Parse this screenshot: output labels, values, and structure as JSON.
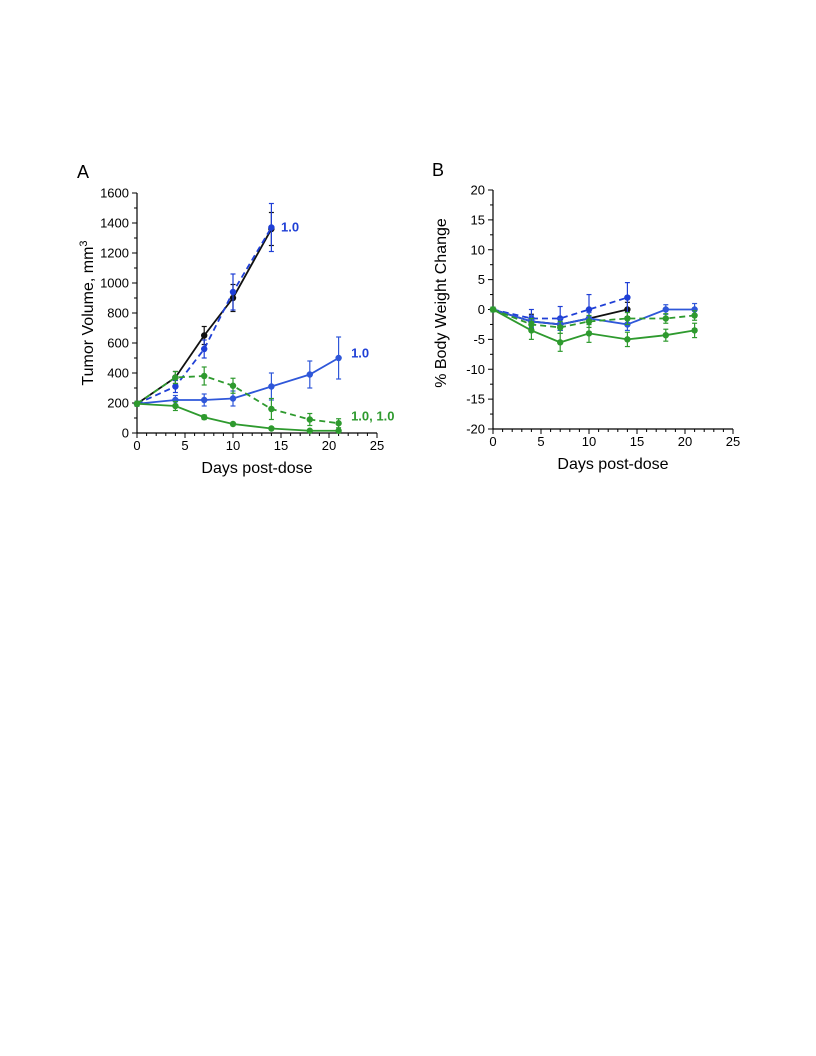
{
  "chart_data": [
    {
      "type": "line",
      "panel_label": "A",
      "xlabel": "Days post-dose",
      "ylabel": "Tumor Volume, mm",
      "ylabel_superscript": "3",
      "xlim": [
        0,
        25
      ],
      "ylim": [
        0,
        1600
      ],
      "xticks": [
        0,
        5,
        10,
        15,
        20,
        25
      ],
      "yticks": [
        0,
        200,
        400,
        600,
        800,
        1000,
        1200,
        1400,
        1600
      ],
      "grid": false,
      "series": [
        {
          "color": "#111111",
          "dash": false,
          "x": [
            0,
            4,
            7,
            10,
            14
          ],
          "y": [
            195,
            370,
            650,
            900,
            1360
          ],
          "err": [
            15,
            40,
            60,
            90,
            110
          ]
        },
        {
          "color": "#1f3fd6",
          "dash": true,
          "x": [
            0,
            4,
            7,
            10,
            14
          ],
          "y": [
            195,
            310,
            560,
            940,
            1370
          ],
          "err": [
            15,
            40,
            60,
            120,
            160
          ]
        },
        {
          "color": "#2f57d9",
          "dash": false,
          "x": [
            0,
            4,
            7,
            10,
            14,
            18,
            21
          ],
          "y": [
            195,
            220,
            220,
            230,
            310,
            390,
            500
          ],
          "err": [
            15,
            30,
            40,
            50,
            90,
            90,
            140
          ]
        },
        {
          "color": "#2e9a2e",
          "dash": true,
          "x": [
            0,
            4,
            7,
            10,
            14,
            18,
            21
          ],
          "y": [
            195,
            370,
            380,
            315,
            160,
            90,
            65
          ],
          "err": [
            15,
            40,
            60,
            50,
            70,
            40,
            30
          ]
        },
        {
          "color": "#2e9a2e",
          "dash": false,
          "x": [
            0,
            4,
            7,
            10,
            14,
            18,
            21
          ],
          "y": [
            195,
            180,
            105,
            60,
            30,
            15,
            15
          ],
          "err": [
            15,
            30,
            15,
            10,
            8,
            5,
            5
          ]
        }
      ],
      "annotations": [
        {
          "text": "1.0",
          "x": 15.0,
          "y": 1370,
          "color": "#1f3fd6"
        },
        {
          "text": "1.0",
          "x": 22.3,
          "y": 530,
          "color": "#1f3fd6"
        },
        {
          "text": "1.0, 1.0",
          "x": 22.3,
          "y": 110,
          "color": "#2e9a2e"
        }
      ]
    },
    {
      "type": "line",
      "panel_label": "B",
      "xlabel": "Days post-dose",
      "ylabel": "% Body Weight Change",
      "xlim": [
        0,
        25
      ],
      "ylim": [
        -20,
        20
      ],
      "xticks": [
        0,
        5,
        10,
        15,
        20,
        25
      ],
      "yticks": [
        -20,
        -15,
        -10,
        -5,
        0,
        5,
        10,
        15,
        20
      ],
      "grid": false,
      "series": [
        {
          "color": "#111111",
          "dash": false,
          "x": [
            0,
            4,
            7,
            10,
            14
          ],
          "y": [
            0,
            -2.0,
            -2.5,
            -1.5,
            0
          ],
          "err": [
            0.4,
            1.2,
            1.0,
            1.0,
            1.2
          ]
        },
        {
          "color": "#1f3fd6",
          "dash": true,
          "x": [
            0,
            4,
            7,
            10,
            14
          ],
          "y": [
            0,
            -1.5,
            -1.5,
            0,
            2.0
          ],
          "err": [
            0.4,
            1.5,
            2.0,
            2.5,
            2.5
          ]
        },
        {
          "color": "#2f57d9",
          "dash": false,
          "x": [
            0,
            4,
            7,
            10,
            14,
            18,
            21
          ],
          "y": [
            0,
            -2.0,
            -2.5,
            -1.5,
            -2.5,
            0,
            0
          ],
          "err": [
            0.4,
            1.0,
            1.0,
            1.0,
            1.0,
            0.8,
            1.0
          ]
        },
        {
          "color": "#2e9a2e",
          "dash": true,
          "x": [
            0,
            4,
            7,
            10,
            14,
            18,
            21
          ],
          "y": [
            0,
            -2.5,
            -3.0,
            -2.0,
            -1.5,
            -1.5,
            -1.0
          ],
          "err": [
            0.4,
            1.0,
            1.0,
            1.0,
            1.0,
            0.8,
            0.8
          ]
        },
        {
          "color": "#2e9a2e",
          "dash": false,
          "x": [
            0,
            4,
            7,
            10,
            14,
            18,
            21
          ],
          "y": [
            0,
            -3.5,
            -5.5,
            -4.0,
            -5.0,
            -4.3,
            -3.5
          ],
          "err": [
            0.4,
            1.5,
            1.5,
            1.5,
            1.2,
            1.0,
            1.2
          ]
        }
      ],
      "annotations": []
    }
  ]
}
